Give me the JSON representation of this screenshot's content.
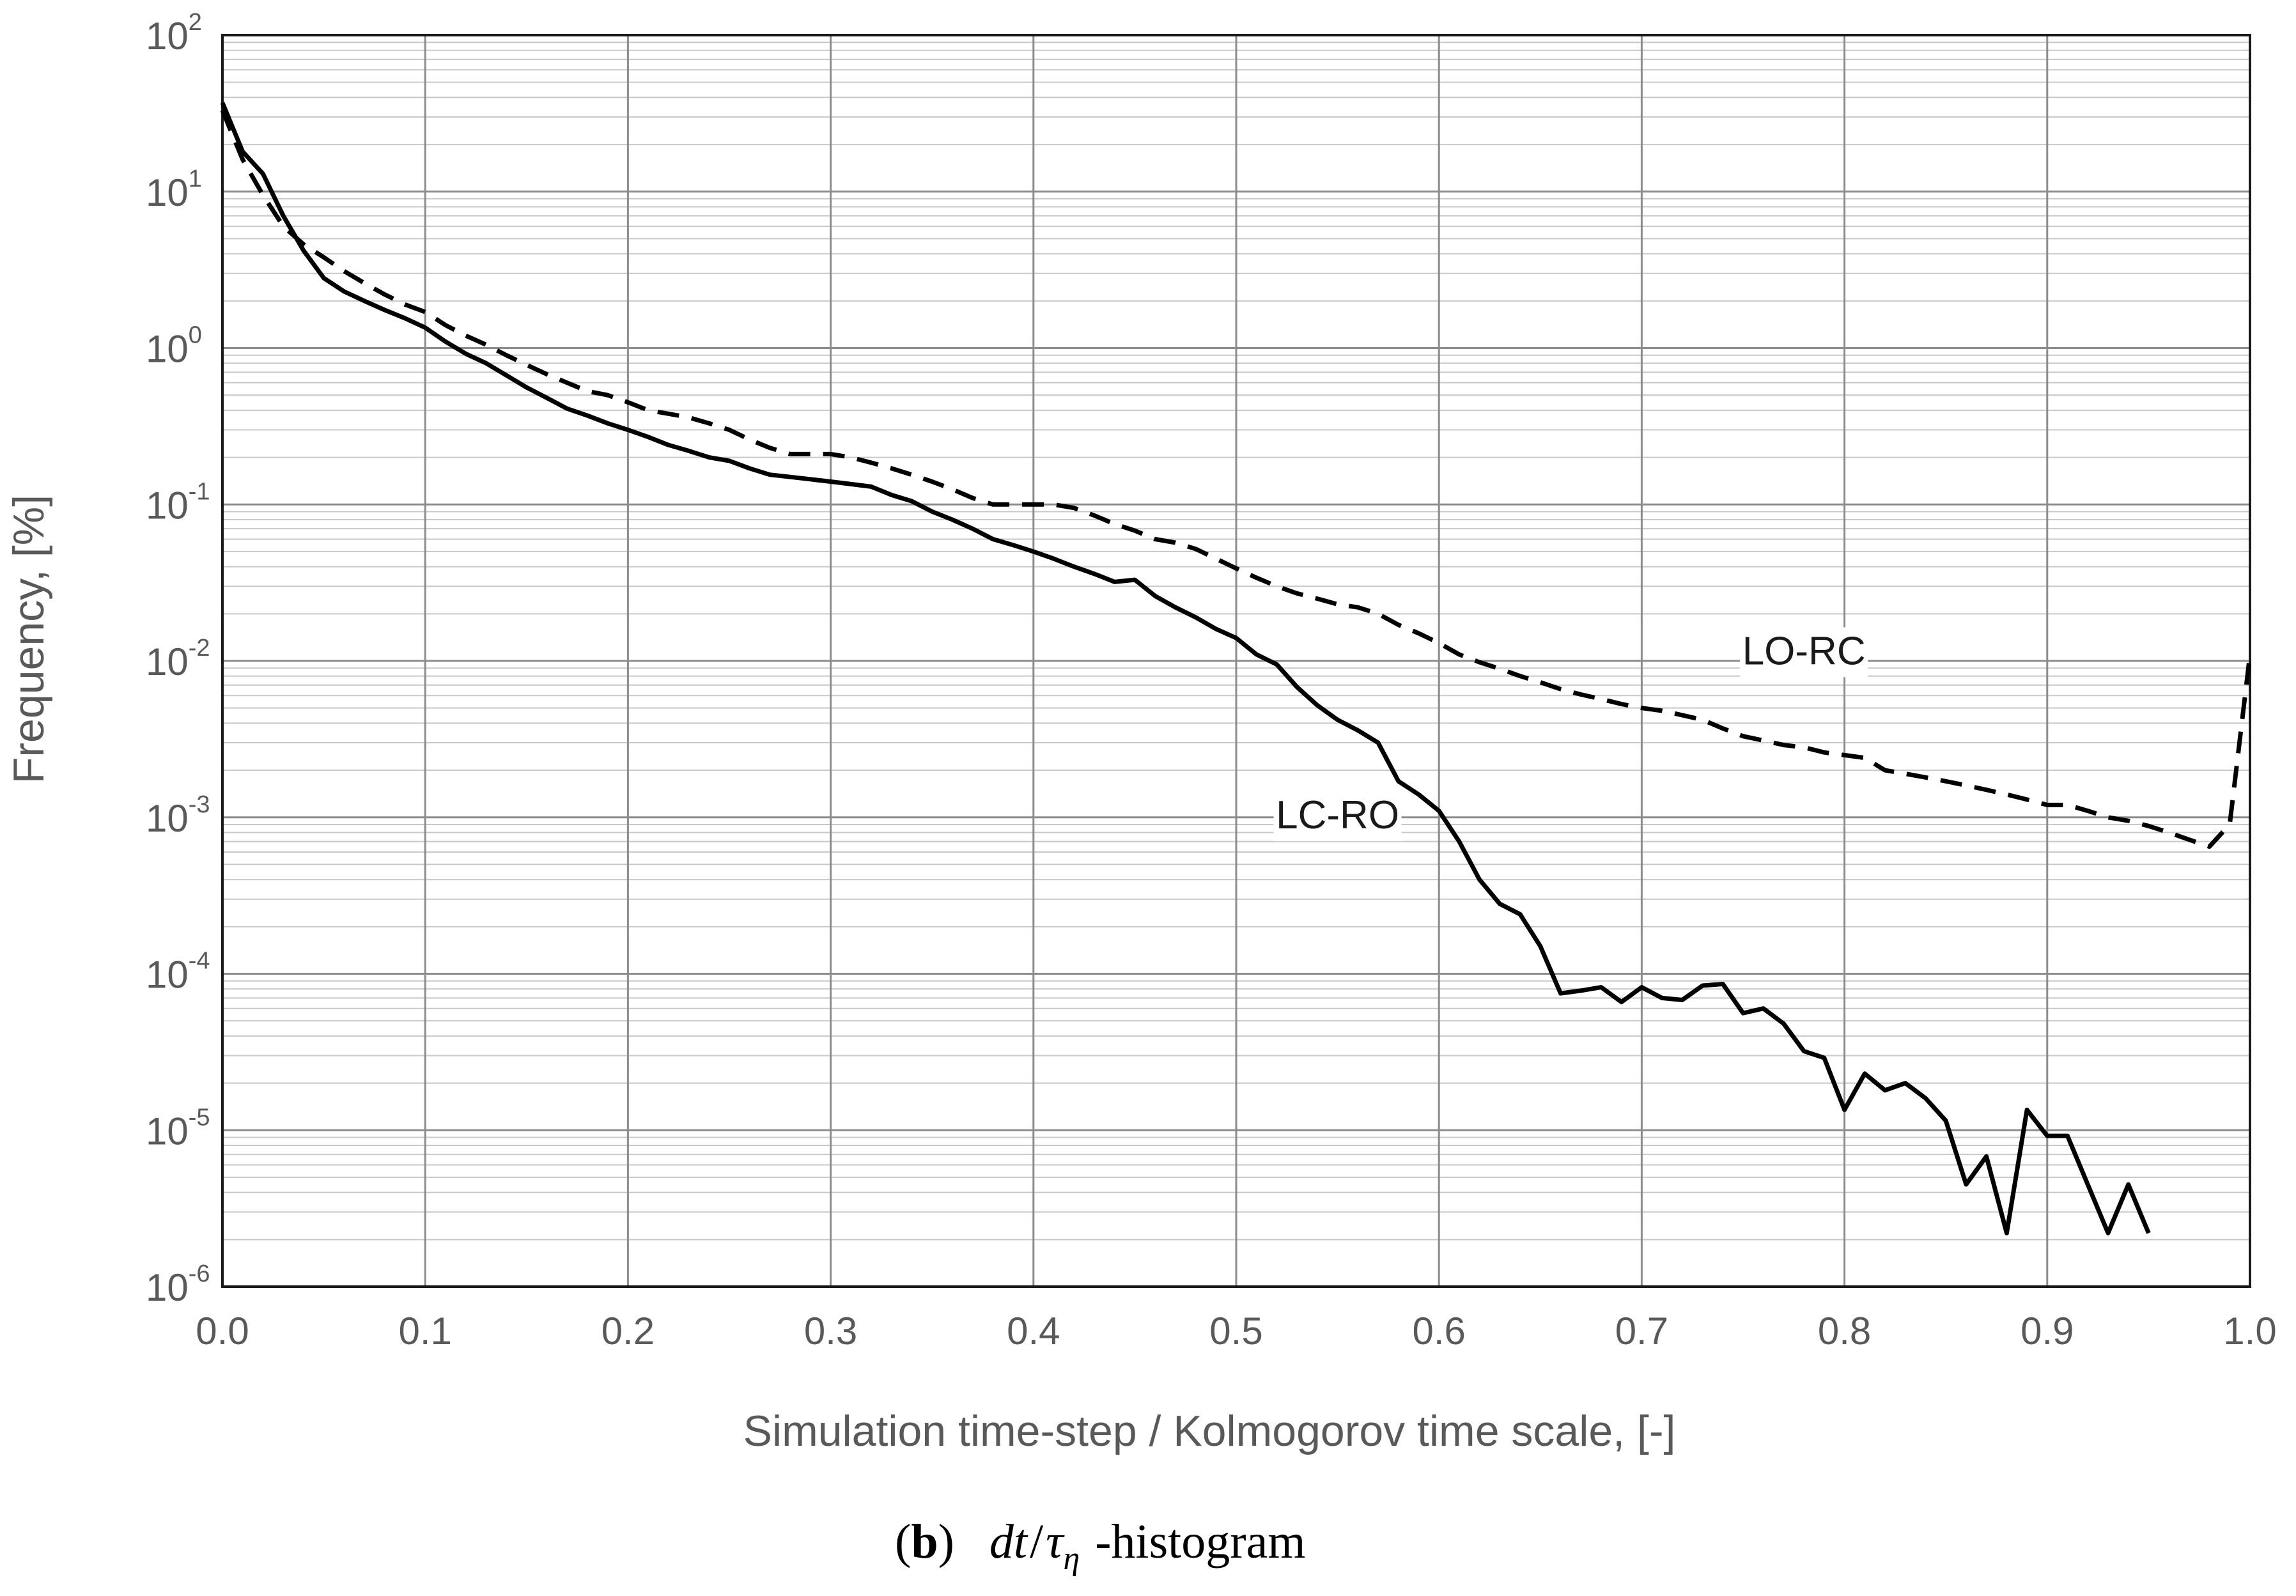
{
  "chart_data": {
    "type": "line",
    "title": "",
    "xlabel": "Simulation time-step / Kolmogorov time scale, [-]",
    "ylabel": "Frequency, [%]",
    "xlim": [
      0.0,
      1.0
    ],
    "ylim": [
      1e-06,
      100
    ],
    "yscale": "log",
    "grid": true,
    "x_ticks": [
      "0.0",
      "0.1",
      "0.2",
      "0.3",
      "0.4",
      "0.5",
      "0.6",
      "0.7",
      "0.8",
      "0.9",
      "1.0"
    ],
    "y_ticks": [
      {
        "base": "10",
        "exp": "2"
      },
      {
        "base": "10",
        "exp": "1"
      },
      {
        "base": "10",
        "exp": "0"
      },
      {
        "base": "10",
        "exp": "-1"
      },
      {
        "base": "10",
        "exp": "-2"
      },
      {
        "base": "10",
        "exp": "-3"
      },
      {
        "base": "10",
        "exp": "-4"
      },
      {
        "base": "10",
        "exp": "-5"
      },
      {
        "base": "10",
        "exp": "-6"
      }
    ],
    "series": [
      {
        "name": "LC-RO",
        "style": "solid",
        "color": "#000000",
        "x": [
          0.0,
          0.01,
          0.02,
          0.03,
          0.04,
          0.05,
          0.06,
          0.07,
          0.08,
          0.09,
          0.1,
          0.11,
          0.12,
          0.13,
          0.14,
          0.15,
          0.16,
          0.17,
          0.18,
          0.19,
          0.2,
          0.21,
          0.22,
          0.23,
          0.24,
          0.25,
          0.26,
          0.27,
          0.28,
          0.29,
          0.3,
          0.31,
          0.32,
          0.33,
          0.34,
          0.35,
          0.36,
          0.37,
          0.38,
          0.39,
          0.4,
          0.41,
          0.42,
          0.43,
          0.44,
          0.45,
          0.46,
          0.47,
          0.48,
          0.49,
          0.5,
          0.51,
          0.52,
          0.53,
          0.54,
          0.55,
          0.56,
          0.57,
          0.58,
          0.59,
          0.6,
          0.61,
          0.62,
          0.63,
          0.64,
          0.65,
          0.66,
          0.67,
          0.68,
          0.69,
          0.7,
          0.71,
          0.72,
          0.73,
          0.74,
          0.75,
          0.76,
          0.77,
          0.78,
          0.79,
          0.8,
          0.81,
          0.82,
          0.83,
          0.84,
          0.85,
          0.86,
          0.87,
          0.88,
          0.89,
          0.9,
          0.91,
          0.92,
          0.93,
          0.94,
          0.95
        ],
        "values": [
          37,
          18,
          13,
          7.0,
          4.2,
          2.8,
          2.3,
          2.0,
          1.75,
          1.55,
          1.35,
          1.1,
          0.92,
          0.8,
          0.67,
          0.56,
          0.48,
          0.41,
          0.37,
          0.33,
          0.3,
          0.27,
          0.24,
          0.22,
          0.2,
          0.19,
          0.17,
          0.155,
          0.15,
          0.145,
          0.14,
          0.135,
          0.13,
          0.115,
          0.105,
          0.09,
          0.08,
          0.07,
          0.06,
          0.055,
          0.05,
          0.045,
          0.04,
          0.036,
          0.032,
          0.033,
          0.026,
          0.022,
          0.019,
          0.016,
          0.014,
          0.011,
          0.0095,
          0.0068,
          0.0052,
          0.0042,
          0.0036,
          0.003,
          0.0017,
          0.0014,
          0.0011,
          0.0007,
          0.0004,
          0.00028,
          0.00024,
          0.00015,
          7.5e-05,
          7.8e-05,
          8.2e-05,
          6.6e-05,
          8.2e-05,
          7e-05,
          6.8e-05,
          8.4e-05,
          8.6e-05,
          5.6e-05,
          6e-05,
          4.8e-05,
          3.2e-05,
          2.9e-05,
          1.35e-05,
          2.3e-05,
          1.8e-05,
          2e-05,
          1.6e-05,
          1.15e-05,
          4.5e-06,
          6.8e-06,
          2.2e-06,
          1.35e-05,
          9.2e-06,
          9.2e-06,
          4.5e-06,
          2.2e-06,
          4.5e-06,
          2.2e-06
        ]
      },
      {
        "name": "LO-RC",
        "style": "dashed",
        "color": "#000000",
        "x": [
          0.0,
          0.01,
          0.02,
          0.03,
          0.04,
          0.05,
          0.06,
          0.07,
          0.08,
          0.09,
          0.1,
          0.11,
          0.12,
          0.13,
          0.14,
          0.15,
          0.16,
          0.17,
          0.18,
          0.19,
          0.2,
          0.21,
          0.22,
          0.23,
          0.24,
          0.25,
          0.26,
          0.27,
          0.28,
          0.29,
          0.3,
          0.31,
          0.32,
          0.33,
          0.34,
          0.35,
          0.36,
          0.37,
          0.38,
          0.39,
          0.4,
          0.41,
          0.42,
          0.43,
          0.44,
          0.45,
          0.46,
          0.47,
          0.48,
          0.49,
          0.5,
          0.51,
          0.52,
          0.53,
          0.54,
          0.55,
          0.56,
          0.57,
          0.58,
          0.59,
          0.6,
          0.61,
          0.62,
          0.63,
          0.64,
          0.65,
          0.66,
          0.67,
          0.68,
          0.69,
          0.7,
          0.71,
          0.72,
          0.73,
          0.74,
          0.75,
          0.76,
          0.77,
          0.78,
          0.79,
          0.8,
          0.81,
          0.82,
          0.83,
          0.84,
          0.85,
          0.86,
          0.87,
          0.88,
          0.89,
          0.9,
          0.91,
          0.92,
          0.93,
          0.94,
          0.95,
          0.96,
          0.97,
          0.98,
          0.99,
          1.0
        ],
        "values": [
          33,
          16,
          9.5,
          6.0,
          4.6,
          3.8,
          3.1,
          2.6,
          2.2,
          1.9,
          1.7,
          1.4,
          1.2,
          1.05,
          0.9,
          0.78,
          0.68,
          0.6,
          0.53,
          0.5,
          0.45,
          0.4,
          0.38,
          0.36,
          0.33,
          0.3,
          0.26,
          0.23,
          0.21,
          0.21,
          0.21,
          0.2,
          0.185,
          0.17,
          0.155,
          0.14,
          0.125,
          0.11,
          0.1,
          0.1,
          0.1,
          0.1,
          0.095,
          0.085,
          0.075,
          0.068,
          0.06,
          0.057,
          0.052,
          0.045,
          0.039,
          0.034,
          0.03,
          0.027,
          0.025,
          0.023,
          0.022,
          0.02,
          0.017,
          0.015,
          0.013,
          0.011,
          0.0098,
          0.0089,
          0.008,
          0.0073,
          0.0066,
          0.0061,
          0.0057,
          0.0053,
          0.005,
          0.0048,
          0.0045,
          0.0042,
          0.0037,
          0.0033,
          0.0031,
          0.0029,
          0.0028,
          0.0026,
          0.0025,
          0.0024,
          0.002,
          0.0019,
          0.0018,
          0.0017,
          0.0016,
          0.0015,
          0.0014,
          0.0013,
          0.0012,
          0.0012,
          0.0011,
          0.001,
          0.00095,
          0.00088,
          0.0008,
          0.00072,
          0.00065,
          0.0009,
          0.011
        ]
      }
    ],
    "annotations": [
      {
        "text": "LO-RC",
        "series": "LO-RC",
        "x": 0.78,
        "y": 0.0095
      },
      {
        "text": "LC-RO",
        "series": "LC-RO",
        "x": 0.55,
        "y": 0.00085
      }
    ]
  },
  "caption": {
    "panel_letter": "b",
    "open_paren": "(",
    "close_paren": ")",
    "math_dt": "dt",
    "math_slash": "/",
    "math_tau": "τ",
    "math_eta": "η",
    "suffix": "-histogram"
  }
}
